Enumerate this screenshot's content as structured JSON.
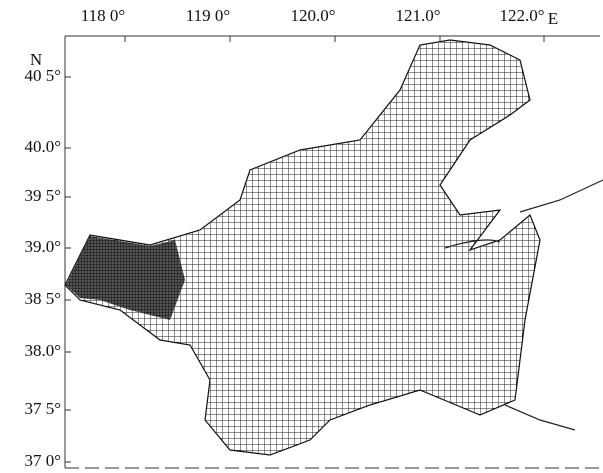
{
  "x_axis": {
    "labels": [
      "118 0°",
      "119 0°",
      "120.0°",
      "121.0°",
      "122.0°"
    ],
    "unit_label": "E"
  },
  "y_axis": {
    "unit_label": "N",
    "labels": [
      "40 5°",
      "40.0°",
      "39 5°",
      "39.0°",
      "38 5°",
      "38.0°",
      "37 5°",
      "37 0°"
    ]
  }
}
